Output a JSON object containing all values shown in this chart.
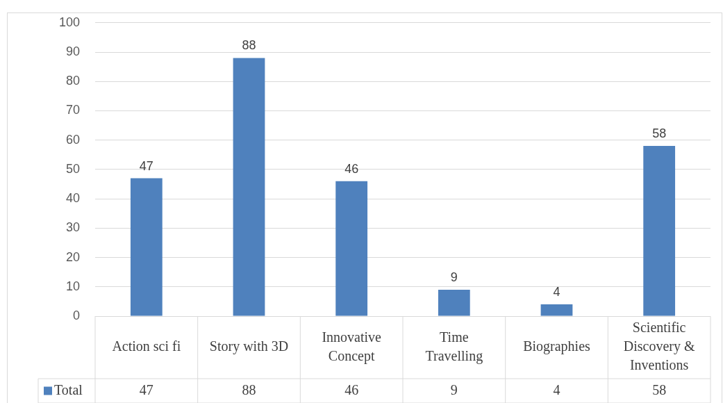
{
  "chart_data": {
    "type": "bar",
    "categories": [
      "Action sci fi",
      "Story with 3D",
      "Innovative Concept",
      "Time Travelling",
      "Biographies",
      "Scientific Discovery & Inventions"
    ],
    "series": [
      {
        "name": "Total",
        "color": "#4f81bd",
        "values": [
          47,
          88,
          46,
          9,
          4,
          58
        ],
        "value_labels": [
          "47",
          "88",
          "46",
          "9",
          "4",
          "58"
        ]
      }
    ],
    "ylim": [
      0,
      100
    ],
    "yticks": [
      0,
      10,
      20,
      30,
      40,
      50,
      60,
      70,
      80,
      90,
      100
    ],
    "annotations": [
      "47",
      "88",
      "46",
      "9",
      "4",
      "58"
    ],
    "grid": "y",
    "legend": "bottom"
  }
}
